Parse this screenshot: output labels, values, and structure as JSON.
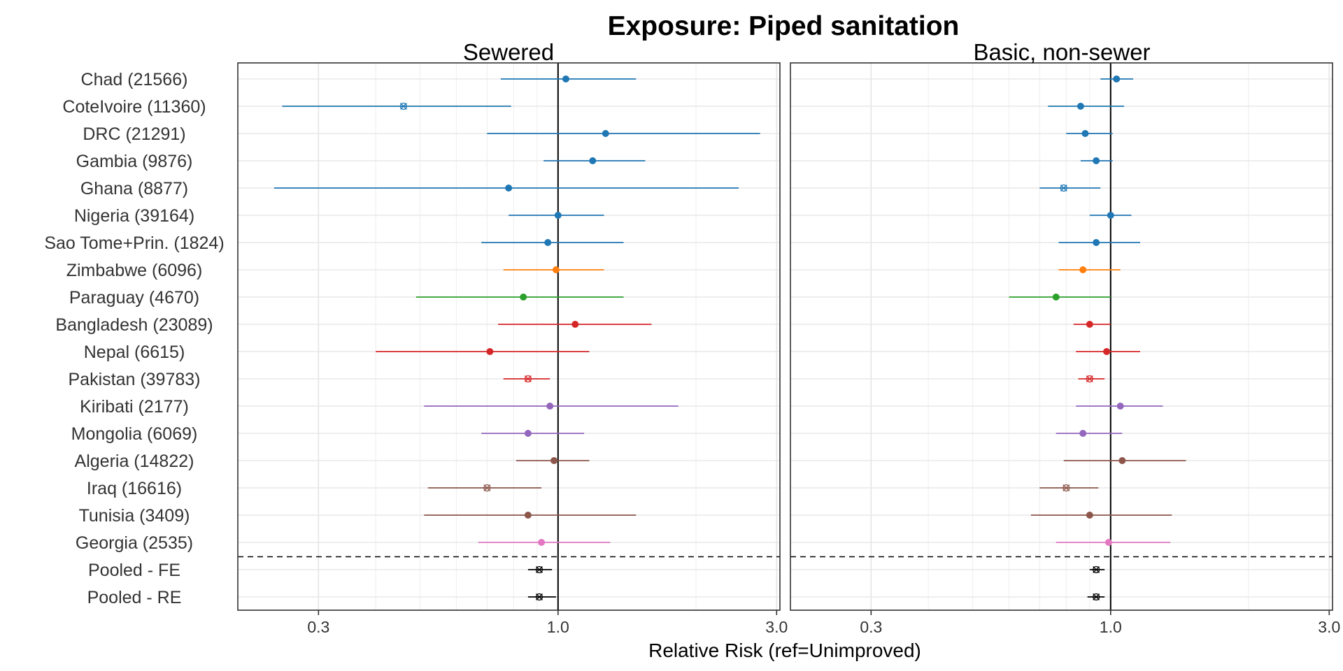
{
  "chart_data": {
    "type": "forest",
    "title": "Exposure: Piped sanitation",
    "xlabel": "Relative Risk (ref=Unimproved)",
    "x_scale": "log",
    "xlim": [
      0.2,
      3.05
    ],
    "x_ticks": [
      0.3,
      1.0,
      3.0
    ],
    "x_tick_labels": [
      "0.3",
      "1.0",
      "3.0"
    ],
    "reference_line": 1.0,
    "grid": true,
    "legend": "none",
    "row_labels": [
      "Chad (21566)",
      "CoteIvoire (11360)",
      "DRC (21291)",
      "Gambia (9876)",
      "Ghana (8877)",
      "Nigeria (39164)",
      "Sao Tome+Prin. (1824)",
      "Zimbabwe (6096)",
      "Paraguay (4670)",
      "Bangladesh (23089)",
      "Nepal (6615)",
      "Pakistan (39783)",
      "Kiribati (2177)",
      "Mongolia (6069)",
      "Algeria (14822)",
      "Iraq (16616)",
      "Tunisia (3409)",
      "Georgia (2535)",
      "Pooled - FE",
      "Pooled - RE"
    ],
    "row_colors": [
      "#1f77b4",
      "#1f77b4",
      "#1f77b4",
      "#1f77b4",
      "#1f77b4",
      "#1f77b4",
      "#1f77b4",
      "#ff7f0e",
      "#2ca02c",
      "#d62728",
      "#d62728",
      "#d62728",
      "#9467bd",
      "#9467bd",
      "#8c564b",
      "#8c564b",
      "#8c564b",
      "#e377c2",
      "#000000",
      "#000000"
    ],
    "separator_after_row": 18,
    "panels": [
      {
        "name": "Sewered",
        "estimates": [
          {
            "est": 1.04,
            "lo": 0.75,
            "hi": 1.48,
            "marker": "dot"
          },
          {
            "est": 0.46,
            "lo": 0.25,
            "hi": 0.79,
            "marker": "x"
          },
          {
            "est": 1.27,
            "lo": 0.7,
            "hi": 2.76,
            "marker": "dot"
          },
          {
            "est": 1.19,
            "lo": 0.93,
            "hi": 1.55,
            "marker": "dot"
          },
          {
            "est": 0.78,
            "lo": 0.24,
            "hi": 2.48,
            "marker": "dot"
          },
          {
            "est": 1.0,
            "lo": 0.78,
            "hi": 1.26,
            "marker": "dot"
          },
          {
            "est": 0.95,
            "lo": 0.68,
            "hi": 1.39,
            "marker": "dot"
          },
          {
            "est": 0.99,
            "lo": 0.76,
            "hi": 1.26,
            "marker": "dot"
          },
          {
            "est": 0.84,
            "lo": 0.49,
            "hi": 1.39,
            "marker": "dot"
          },
          {
            "est": 1.09,
            "lo": 0.74,
            "hi": 1.6,
            "marker": "dot"
          },
          {
            "est": 0.71,
            "lo": 0.4,
            "hi": 1.17,
            "marker": "dot"
          },
          {
            "est": 0.86,
            "lo": 0.76,
            "hi": 0.96,
            "marker": "x"
          },
          {
            "est": 0.96,
            "lo": 0.51,
            "hi": 1.83,
            "marker": "dot"
          },
          {
            "est": 0.86,
            "lo": 0.68,
            "hi": 1.14,
            "marker": "dot"
          },
          {
            "est": 0.98,
            "lo": 0.81,
            "hi": 1.17,
            "marker": "dot"
          },
          {
            "est": 0.7,
            "lo": 0.52,
            "hi": 0.92,
            "marker": "x"
          },
          {
            "est": 0.86,
            "lo": 0.51,
            "hi": 1.48,
            "marker": "dot"
          },
          {
            "est": 0.92,
            "lo": 0.67,
            "hi": 1.3,
            "marker": "dot"
          },
          {
            "est": 0.91,
            "lo": 0.86,
            "hi": 0.97,
            "marker": "x"
          },
          {
            "est": 0.91,
            "lo": 0.86,
            "hi": 0.99,
            "marker": "x"
          }
        ]
      },
      {
        "name": "Basic, non-sewer",
        "estimates": [
          {
            "est": 1.03,
            "lo": 0.95,
            "hi": 1.12,
            "marker": "dot"
          },
          {
            "est": 0.86,
            "lo": 0.73,
            "hi": 1.07,
            "marker": "dot"
          },
          {
            "est": 0.88,
            "lo": 0.8,
            "hi": 1.01,
            "marker": "dot"
          },
          {
            "est": 0.93,
            "lo": 0.86,
            "hi": 1.01,
            "marker": "dot"
          },
          {
            "est": 0.79,
            "lo": 0.7,
            "hi": 0.95,
            "marker": "x"
          },
          {
            "est": 1.0,
            "lo": 0.9,
            "hi": 1.11,
            "marker": "dot"
          },
          {
            "est": 0.93,
            "lo": 0.77,
            "hi": 1.16,
            "marker": "dot"
          },
          {
            "est": 0.87,
            "lo": 0.77,
            "hi": 1.05,
            "marker": "dot"
          },
          {
            "est": 0.76,
            "lo": 0.6,
            "hi": 1.0,
            "marker": "dot"
          },
          {
            "est": 0.9,
            "lo": 0.83,
            "hi": 1.0,
            "marker": "dot"
          },
          {
            "est": 0.98,
            "lo": 0.84,
            "hi": 1.16,
            "marker": "dot"
          },
          {
            "est": 0.9,
            "lo": 0.85,
            "hi": 0.97,
            "marker": "x"
          },
          {
            "est": 1.05,
            "lo": 0.84,
            "hi": 1.3,
            "marker": "dot"
          },
          {
            "est": 0.87,
            "lo": 0.76,
            "hi": 1.06,
            "marker": "dot"
          },
          {
            "est": 1.06,
            "lo": 0.79,
            "hi": 1.46,
            "marker": "dot"
          },
          {
            "est": 0.8,
            "lo": 0.7,
            "hi": 0.94,
            "marker": "x"
          },
          {
            "est": 0.9,
            "lo": 0.67,
            "hi": 1.36,
            "marker": "dot"
          },
          {
            "est": 0.99,
            "lo": 0.76,
            "hi": 1.35,
            "marker": "dot"
          },
          {
            "est": 0.93,
            "lo": 0.9,
            "hi": 0.97,
            "marker": "x"
          },
          {
            "est": 0.93,
            "lo": 0.89,
            "hi": 0.97,
            "marker": "x"
          }
        ]
      }
    ]
  }
}
